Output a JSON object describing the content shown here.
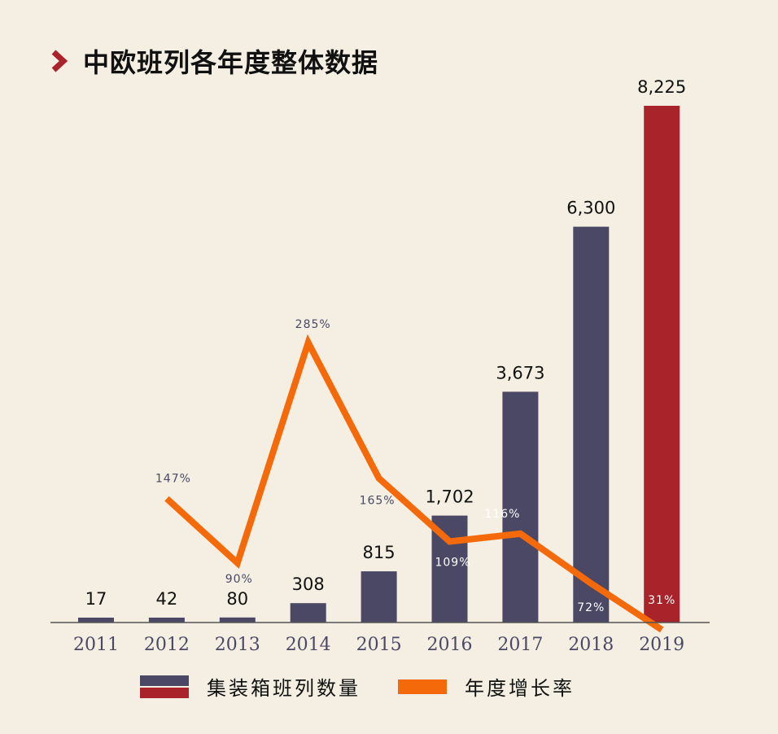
{
  "title": "中欧班列各年度整体数据",
  "colors": {
    "background": "#f4efe2",
    "bar": "#4b4866",
    "bar_highlight": "#a9232b",
    "line": "#f46a0a",
    "growth_label": "#4b4866",
    "growth_label_inside": "#ffffff",
    "chevron": "#a9232b"
  },
  "legend": {
    "bars_label": "集装箱班列数量",
    "line_label": "年度增长率"
  },
  "chart_data": {
    "type": "bar",
    "categories": [
      "2011",
      "2012",
      "2013",
      "2014",
      "2015",
      "2016",
      "2017",
      "2018",
      "2019"
    ],
    "series": [
      {
        "name": "集装箱班列数量",
        "type": "bar",
        "values": [
          17,
          42,
          80,
          308,
          815,
          1702,
          3673,
          6300,
          8225
        ],
        "labels": [
          "17",
          "42",
          "80",
          "308",
          "815",
          "1,702",
          "3,673",
          "6,300",
          "8,225"
        ]
      },
      {
        "name": "年度增长率",
        "type": "line",
        "values": [
          null,
          147,
          90,
          285,
          165,
          109,
          116,
          72,
          31
        ],
        "labels": [
          "",
          "147%",
          "90%",
          "285%",
          "165%",
          "109%",
          "116%",
          "72%",
          "31%"
        ]
      }
    ],
    "highlight_category": "2019",
    "ylim": [
      0,
      8225
    ],
    "y2lim": [
      0,
      300
    ],
    "xlabel": "",
    "ylabel": "",
    "grid": false,
    "legend_position": "bottom"
  }
}
